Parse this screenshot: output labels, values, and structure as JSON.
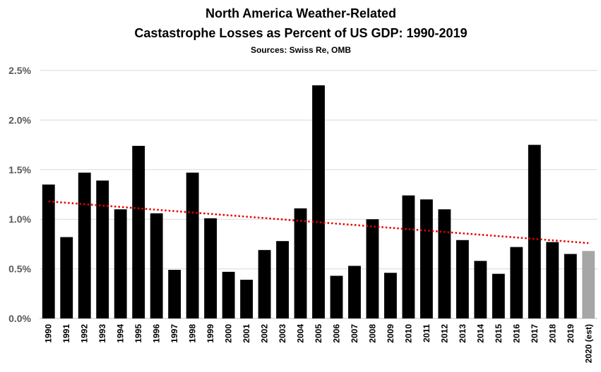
{
  "chart_data": {
    "type": "bar",
    "title_line1": "North America Weather-Related",
    "title_line2": "Castastrophe Losses as Percent of US GDP: 1990-2019",
    "subtitle": "Sources: Swiss Re, OMB",
    "xlabel": "",
    "ylabel": "",
    "ylim": [
      0,
      2.5
    ],
    "yticks": [
      {
        "value": 0.0,
        "label": "0.0%"
      },
      {
        "value": 0.5,
        "label": "0.5%"
      },
      {
        "value": 1.0,
        "label": "1.0%"
      },
      {
        "value": 1.5,
        "label": "1.5%"
      },
      {
        "value": 2.0,
        "label": "2.0%"
      },
      {
        "value": 2.5,
        "label": "2.5%"
      }
    ],
    "grid": true,
    "categories": [
      "1990",
      "1991",
      "1992",
      "1993",
      "1994",
      "1995",
      "1996",
      "1997",
      "1998",
      "1999",
      "2000",
      "2001",
      "2002",
      "2003",
      "2004",
      "2005",
      "2006",
      "2007",
      "2008",
      "2009",
      "2010",
      "2011",
      "2012",
      "2013",
      "2014",
      "2015",
      "2016",
      "2017",
      "2018",
      "2019",
      "2020 (est)"
    ],
    "values": [
      1.35,
      0.82,
      1.47,
      1.39,
      1.1,
      1.74,
      1.06,
      0.49,
      1.47,
      1.01,
      0.47,
      0.39,
      0.69,
      0.78,
      1.11,
      2.35,
      0.43,
      0.53,
      1.0,
      0.46,
      1.24,
      1.2,
      1.1,
      0.79,
      0.58,
      0.45,
      0.72,
      1.75,
      0.77,
      0.65,
      0.68
    ],
    "bar_colors": {
      "observed": "#000000",
      "estimate": "#a6a6a6"
    },
    "trendline": {
      "type": "linear",
      "start": 1.18,
      "end": 0.76,
      "color": "#e60000",
      "style": "dotted"
    }
  }
}
